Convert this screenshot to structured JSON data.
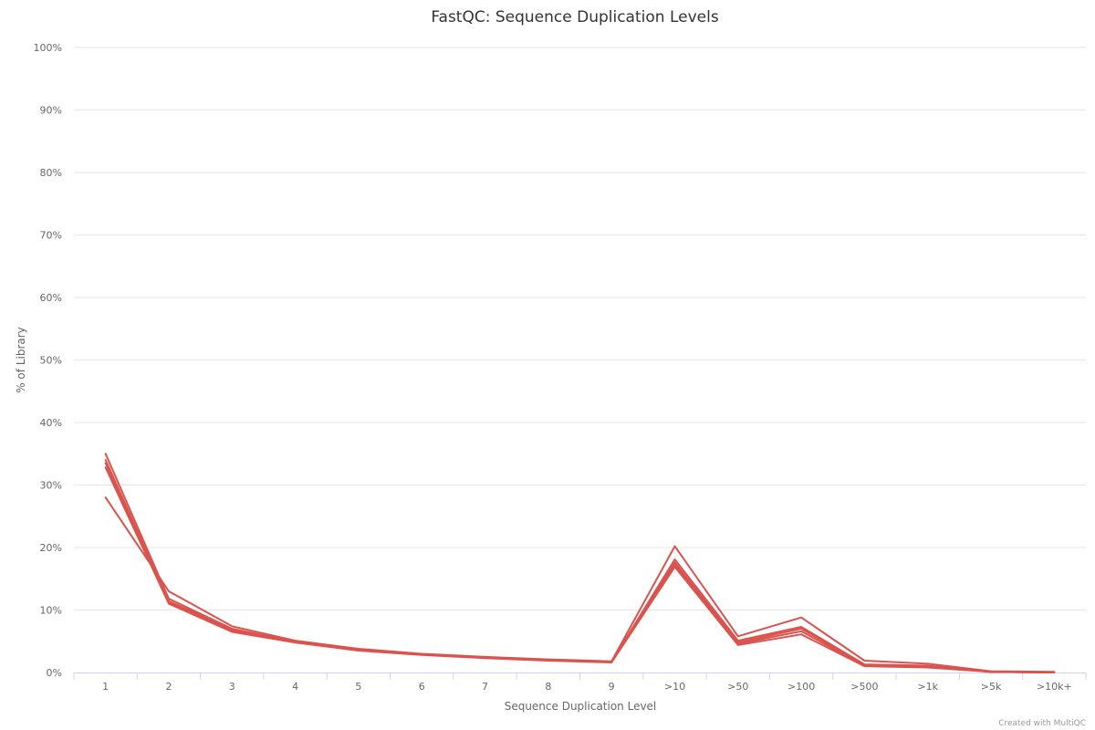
{
  "chart_data": {
    "type": "line",
    "title": "FastQC: Sequence Duplication Levels",
    "xlabel": "Sequence Duplication Level",
    "ylabel": "% of Library",
    "categories": [
      "1",
      "2",
      "3",
      "4",
      "5",
      "6",
      "7",
      "8",
      "9",
      ">10",
      ">50",
      ">100",
      ">500",
      ">1k",
      ">5k",
      ">10k+"
    ],
    "ylim": [
      0,
      100
    ],
    "yticks": [
      "0%",
      "10%",
      "20%",
      "30%",
      "40%",
      "50%",
      "60%",
      "70%",
      "80%",
      "90%",
      "100%"
    ],
    "grid": true,
    "legend": "none",
    "color": "#d9534f",
    "series": [
      {
        "values": [
          28.0,
          13.0,
          7.4,
          5.1,
          3.8,
          3.0,
          2.5,
          2.1,
          1.8,
          20.2,
          5.8,
          8.8,
          1.9,
          1.4,
          0.2,
          0.1
        ]
      },
      {
        "values": [
          35.0,
          11.8,
          7.0,
          4.9,
          3.7,
          2.9,
          2.4,
          2.0,
          1.7,
          18.1,
          5.1,
          7.3,
          1.3,
          1.1,
          0.1,
          0.0
        ]
      },
      {
        "values": [
          33.5,
          11.2,
          6.7,
          4.8,
          3.6,
          2.9,
          2.4,
          2.0,
          1.7,
          17.3,
          4.6,
          6.6,
          1.1,
          0.9,
          0.1,
          0.0
        ]
      },
      {
        "values": [
          32.8,
          11.0,
          6.5,
          4.8,
          3.5,
          2.8,
          2.3,
          1.9,
          1.6,
          16.9,
          4.4,
          6.1,
          1.0,
          0.8,
          0.1,
          0.0
        ]
      },
      {
        "values": [
          34.0,
          11.4,
          6.9,
          4.9,
          3.6,
          2.9,
          2.4,
          2.0,
          1.7,
          17.6,
          4.8,
          7.0,
          1.2,
          1.0,
          0.1,
          0.0
        ]
      }
    ],
    "credits": "Created with MultiQC"
  }
}
